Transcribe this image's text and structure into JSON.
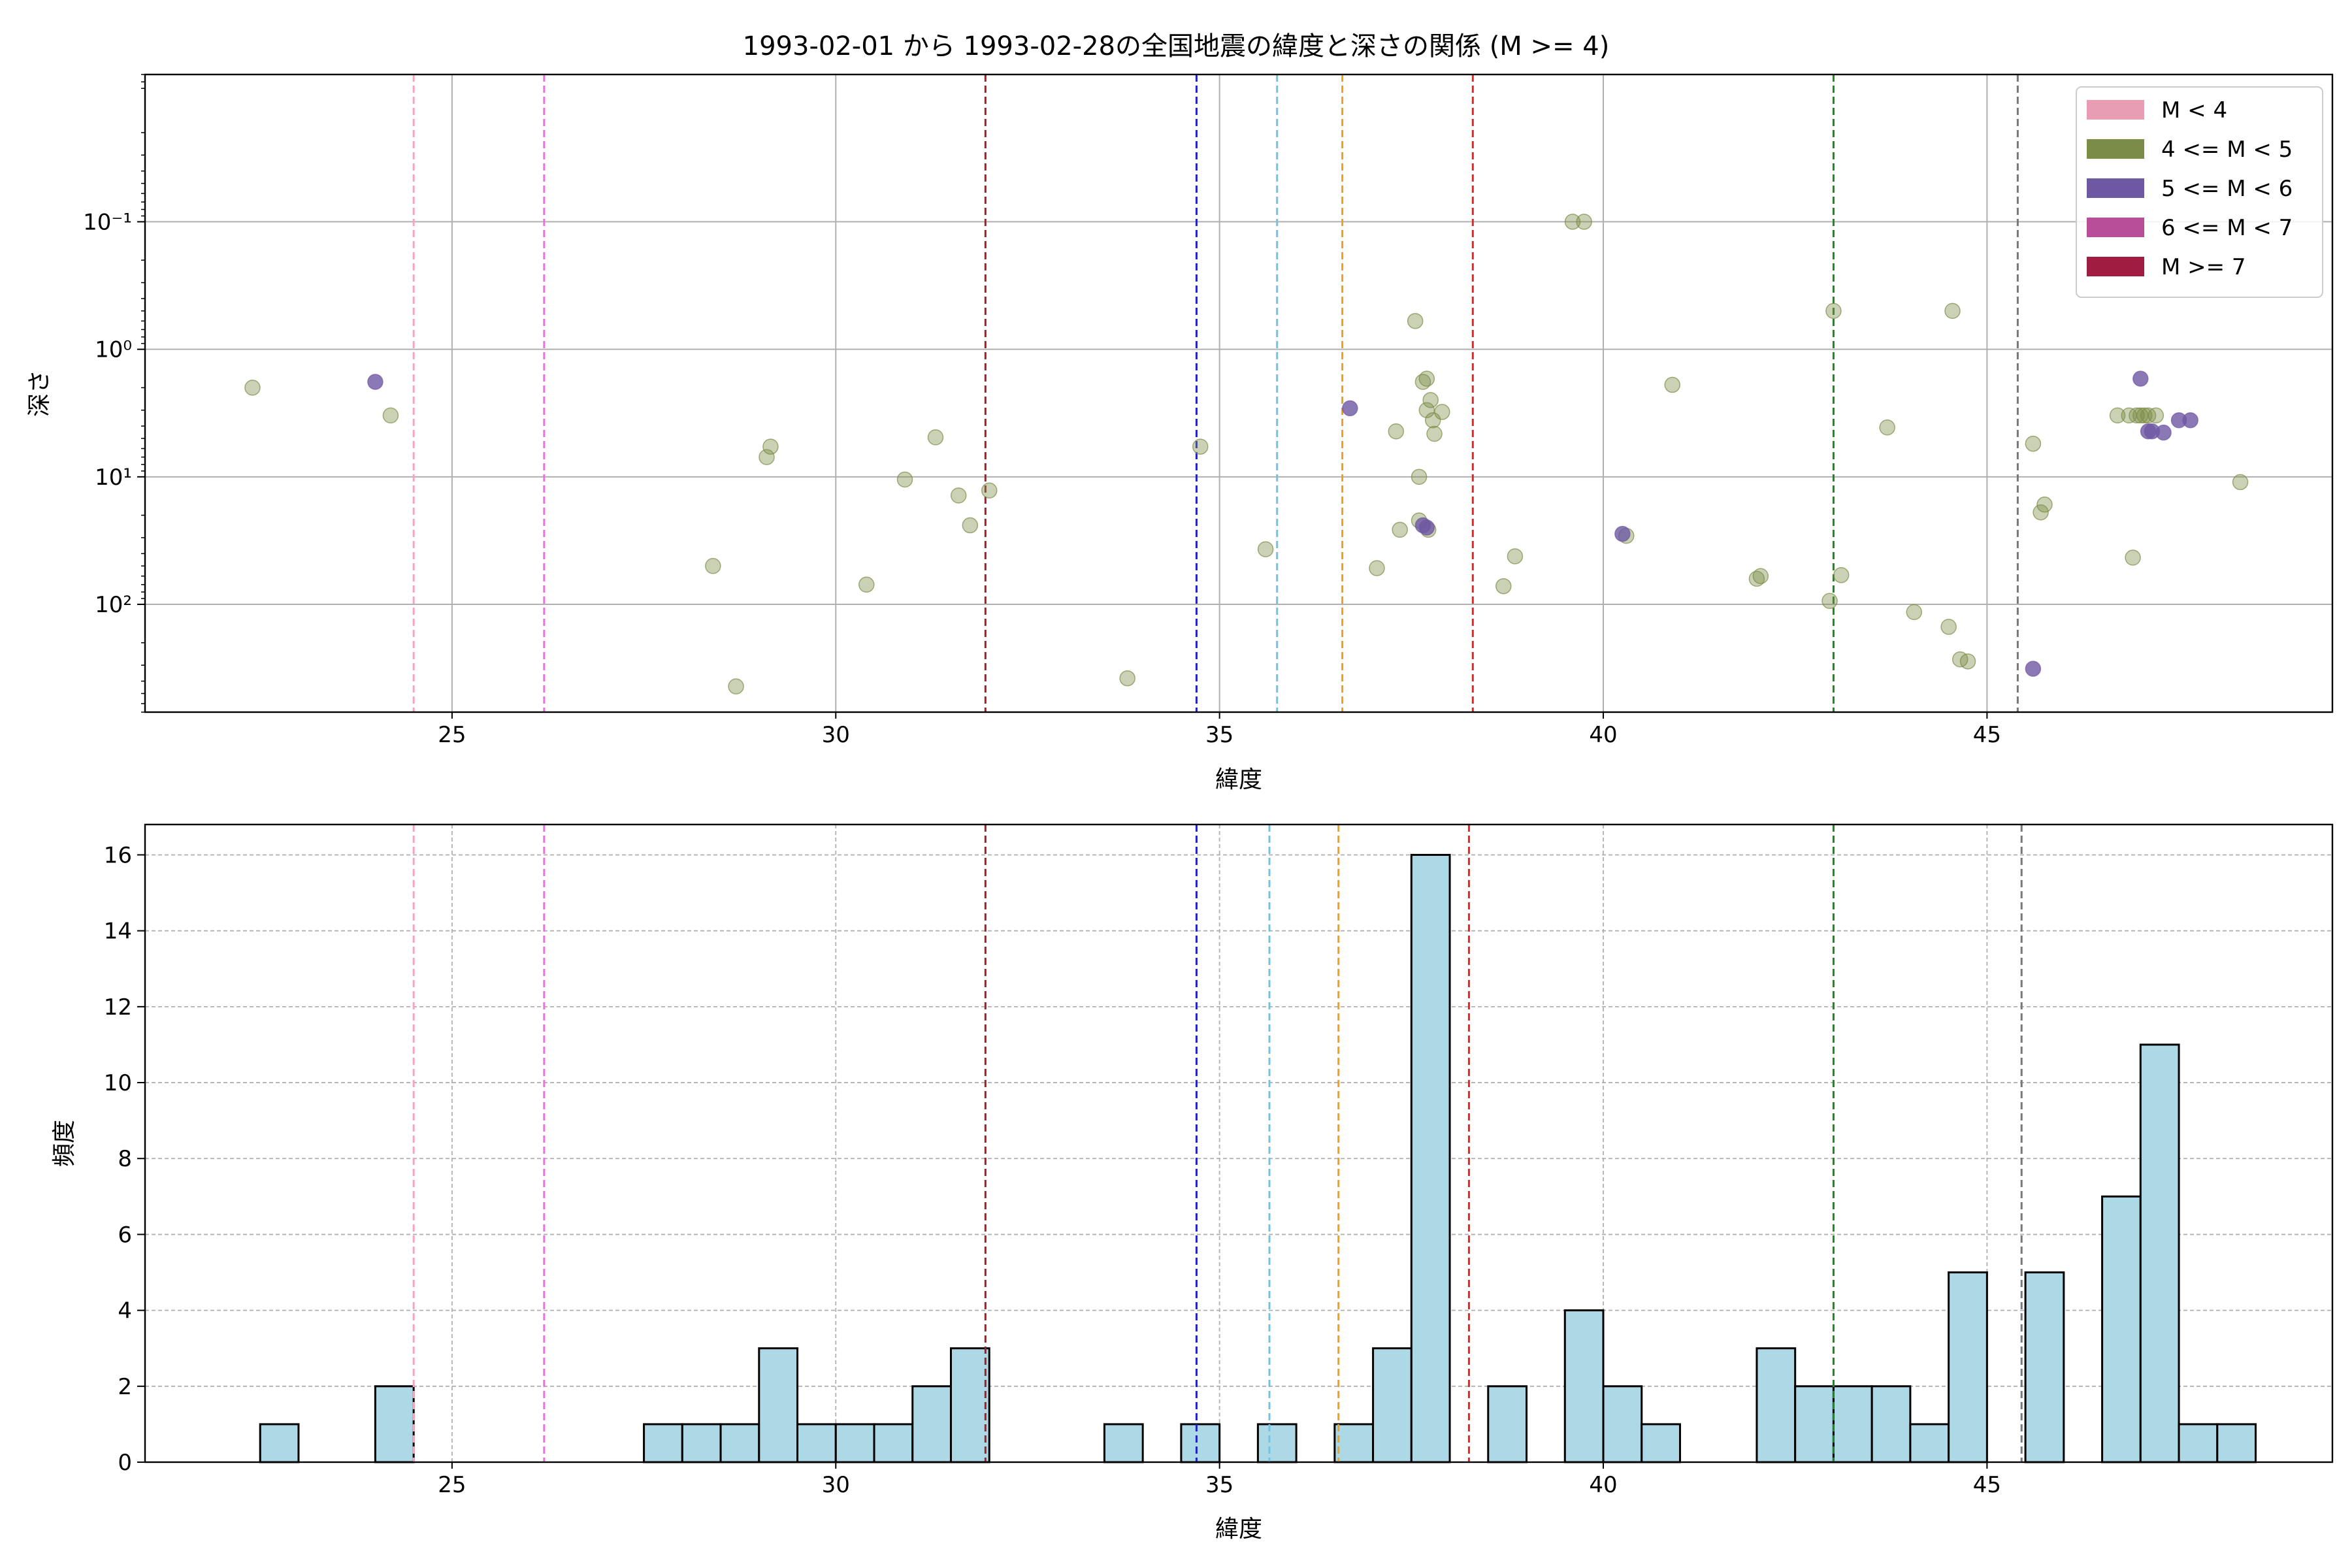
{
  "figure": {
    "title": "1993-02-01 から 1993-02-28の全国地震の緯度と深さの関係 (M >= 4)"
  },
  "chart_data": [
    {
      "type": "scatter",
      "xlabel": "緯度",
      "ylabel": "深さ",
      "xlim": [
        21.0,
        49.5
      ],
      "ylim": [
        0.007,
        700
      ],
      "y_scale": "log",
      "y_inverted": true,
      "grid": true,
      "x_ticks": [
        25,
        30,
        35,
        40,
        45
      ],
      "y_ticks": [
        {
          "value": 0.1,
          "label": "10⁻¹"
        },
        {
          "value": 1,
          "label": "10⁰"
        },
        {
          "value": 10,
          "label": "10¹"
        },
        {
          "value": 100,
          "label": "10²"
        }
      ],
      "legend": {
        "placement": "top-right",
        "entries": [
          {
            "label": "M < 4",
            "color": "#e89db4"
          },
          {
            "label": "4 <= M < 5",
            "color": "#7a8c45"
          },
          {
            "label": "5 <= M < 6",
            "color": "#6e57a3"
          },
          {
            "label": "6 <= M < 7",
            "color": "#b84d9a"
          },
          {
            "label": "M >= 7",
            "color": "#a01c40"
          }
        ]
      },
      "vlines": [
        {
          "x": 24.5,
          "color": "#f4a6c0"
        },
        {
          "x": 26.2,
          "color": "#ee6ee0"
        },
        {
          "x": 31.95,
          "color": "#a31f24"
        },
        {
          "x": 34.7,
          "color": "#1f1fd0"
        },
        {
          "x": 35.75,
          "color": "#72c2e4"
        },
        {
          "x": 36.6,
          "color": "#f0a020"
        },
        {
          "x": 38.3,
          "color": "#e82424"
        },
        {
          "x": 43.0,
          "color": "#1a8a1a"
        },
        {
          "x": 45.4,
          "color": "#777777"
        }
      ],
      "series": [
        {
          "group": "4 <= M < 5",
          "color": "#7a8c45",
          "points": [
            [
              22.4,
              2.0
            ],
            [
              24.2,
              3.3
            ],
            [
              28.4,
              50
            ],
            [
              28.7,
              440
            ],
            [
              29.1,
              7.0
            ],
            [
              29.15,
              5.8
            ],
            [
              30.4,
              70
            ],
            [
              30.9,
              10.5
            ],
            [
              31.3,
              4.9
            ],
            [
              31.6,
              14
            ],
            [
              31.75,
              24
            ],
            [
              32.0,
              12.8
            ],
            [
              33.8,
              380
            ],
            [
              34.75,
              5.8
            ],
            [
              35.6,
              37
            ],
            [
              37.05,
              52
            ],
            [
              37.3,
              4.4
            ],
            [
              37.35,
              26
            ],
            [
              37.55,
              0.6
            ],
            [
              37.6,
              22
            ],
            [
              37.6,
              10
            ],
            [
              37.65,
              1.8
            ],
            [
              37.7,
              1.7
            ],
            [
              37.7,
              3.0
            ],
            [
              37.72,
              26
            ],
            [
              37.75,
              2.5
            ],
            [
              37.78,
              3.6
            ],
            [
              37.8,
              4.6
            ],
            [
              37.9,
              3.1
            ],
            [
              38.7,
              72
            ],
            [
              38.85,
              42
            ],
            [
              39.6,
              0.1
            ],
            [
              39.75,
              0.1
            ],
            [
              40.3,
              29
            ],
            [
              40.9,
              1.9
            ],
            [
              42.0,
              63
            ],
            [
              42.05,
              60
            ],
            [
              42.95,
              94
            ],
            [
              43.0,
              0.5
            ],
            [
              43.1,
              59
            ],
            [
              43.7,
              4.1
            ],
            [
              44.05,
              115
            ],
            [
              44.5,
              150
            ],
            [
              44.55,
              0.5
            ],
            [
              44.65,
              270
            ],
            [
              44.75,
              280
            ],
            [
              45.6,
              5.5
            ],
            [
              45.7,
              19
            ],
            [
              45.75,
              16.5
            ],
            [
              46.7,
              3.3
            ],
            [
              46.85,
              3.3
            ],
            [
              46.9,
              43
            ],
            [
              46.95,
              3.3
            ],
            [
              47.0,
              3.3
            ],
            [
              47.05,
              3.3
            ],
            [
              47.1,
              3.3
            ],
            [
              47.2,
              3.3
            ],
            [
              48.3,
              11
            ]
          ]
        },
        {
          "group": "5 <= M < 6",
          "color": "#6e57a3",
          "points": [
            [
              24.0,
              1.8
            ],
            [
              36.7,
              2.9
            ],
            [
              37.65,
              24
            ],
            [
              37.7,
              25
            ],
            [
              40.25,
              28
            ],
            [
              45.6,
              320
            ],
            [
              47.0,
              1.7
            ],
            [
              47.1,
              4.4
            ],
            [
              47.15,
              4.4
            ],
            [
              47.3,
              4.5
            ],
            [
              47.5,
              3.6
            ],
            [
              47.65,
              3.6
            ]
          ]
        }
      ]
    },
    {
      "type": "bar",
      "xlabel": "緯度",
      "ylabel": "頻度",
      "xlim": [
        21.0,
        49.5
      ],
      "ylim": [
        0,
        16.8
      ],
      "grid": true,
      "x_ticks": [
        25,
        30,
        35,
        40,
        45
      ],
      "y_ticks": [
        0,
        2,
        4,
        6,
        8,
        10,
        12,
        14,
        16
      ],
      "bar_color": "#add8e6",
      "bin_width": 0.5,
      "bins": [
        {
          "x0": 22.5,
          "count": 1
        },
        {
          "x0": 24.0,
          "count": 2
        },
        {
          "x0": 27.5,
          "count": 1
        },
        {
          "x0": 28.0,
          "count": 1
        },
        {
          "x0": 28.5,
          "count": 1
        },
        {
          "x0": 29.0,
          "count": 3
        },
        {
          "x0": 29.5,
          "count": 1
        },
        {
          "x0": 30.0,
          "count": 1
        },
        {
          "x0": 30.5,
          "count": 1
        },
        {
          "x0": 31.0,
          "count": 2
        },
        {
          "x0": 31.5,
          "count": 3
        },
        {
          "x0": 33.5,
          "count": 1
        },
        {
          "x0": 34.5,
          "count": 1
        },
        {
          "x0": 35.5,
          "count": 1
        },
        {
          "x0": 36.5,
          "count": 1
        },
        {
          "x0": 37.0,
          "count": 3
        },
        {
          "x0": 37.5,
          "count": 16
        },
        {
          "x0": 38.5,
          "count": 2
        },
        {
          "x0": 39.5,
          "count": 4
        },
        {
          "x0": 40.0,
          "count": 2
        },
        {
          "x0": 40.5,
          "count": 1
        },
        {
          "x0": 42.0,
          "count": 3
        },
        {
          "x0": 42.5,
          "count": 2
        },
        {
          "x0": 43.0,
          "count": 2
        },
        {
          "x0": 43.5,
          "count": 2
        },
        {
          "x0": 44.0,
          "count": 1
        },
        {
          "x0": 44.5,
          "count": 5
        },
        {
          "x0": 45.5,
          "count": 5
        },
        {
          "x0": 46.5,
          "count": 7
        },
        {
          "x0": 47.0,
          "count": 11
        },
        {
          "x0": 47.5,
          "count": 1
        },
        {
          "x0": 48.0,
          "count": 1
        }
      ],
      "vlines": [
        {
          "x": 24.5,
          "color": "#f4a6c0"
        },
        {
          "x": 26.2,
          "color": "#ee6ee0"
        },
        {
          "x": 31.95,
          "color": "#a31f24"
        },
        {
          "x": 34.7,
          "color": "#1f1fd0"
        },
        {
          "x": 35.65,
          "color": "#72c2e4"
        },
        {
          "x": 36.55,
          "color": "#f0a020"
        },
        {
          "x": 38.25,
          "color": "#e82424"
        },
        {
          "x": 43.0,
          "color": "#1a8a1a"
        },
        {
          "x": 45.45,
          "color": "#777777"
        }
      ]
    }
  ]
}
